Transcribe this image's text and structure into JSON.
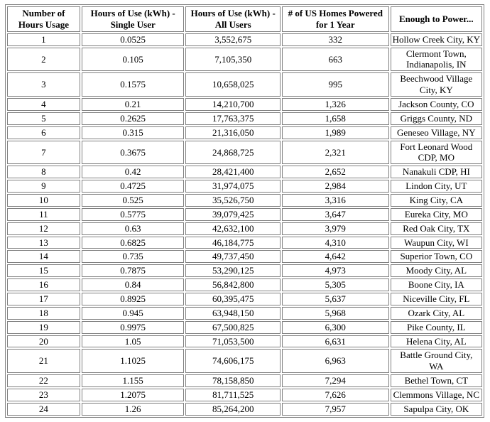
{
  "page": {
    "background_color": "#ffffff",
    "text_color": "#000000",
    "border_color": "#808080"
  },
  "table": {
    "columns": [
      "Number of Hours Usage",
      "Hours of Use (kWh) - Single User",
      "Hours of Use (kWh) - All Users",
      "# of US Homes Powered for 1 Year",
      "Enough to Power..."
    ],
    "rows": [
      [
        "1",
        "0.0525",
        "3,552,675",
        "332",
        "Hollow Creek City, KY"
      ],
      [
        "2",
        "0.105",
        "7,105,350",
        "663",
        "Clermont Town, Indianapolis, IN"
      ],
      [
        "3",
        "0.1575",
        "10,658,025",
        "995",
        "Beechwood Village City, KY"
      ],
      [
        "4",
        "0.21",
        "14,210,700",
        "1,326",
        "Jackson County, CO"
      ],
      [
        "5",
        "0.2625",
        "17,763,375",
        "1,658",
        "Griggs County, ND"
      ],
      [
        "6",
        "0.315",
        "21,316,050",
        "1,989",
        "Geneseo Village, NY"
      ],
      [
        "7",
        "0.3675",
        "24,868,725",
        "2,321",
        "Fort Leonard Wood CDP, MO"
      ],
      [
        "8",
        "0.42",
        "28,421,400",
        "2,652",
        "Nanakuli CDP, HI"
      ],
      [
        "9",
        "0.4725",
        "31,974,075",
        "2,984",
        "Lindon City, UT"
      ],
      [
        "10",
        "0.525",
        "35,526,750",
        "3,316",
        "King City, CA"
      ],
      [
        "11",
        "0.5775",
        "39,079,425",
        "3,647",
        "Eureka City, MO"
      ],
      [
        "12",
        "0.63",
        "42,632,100",
        "3,979",
        "Red Oak City, TX"
      ],
      [
        "13",
        "0.6825",
        "46,184,775",
        "4,310",
        "Waupun City, WI"
      ],
      [
        "14",
        "0.735",
        "49,737,450",
        "4,642",
        "Superior Town, CO"
      ],
      [
        "15",
        "0.7875",
        "53,290,125",
        "4,973",
        "Moody City, AL"
      ],
      [
        "16",
        "0.84",
        "56,842,800",
        "5,305",
        "Boone City, IA"
      ],
      [
        "17",
        "0.8925",
        "60,395,475",
        "5,637",
        "Niceville City, FL"
      ],
      [
        "18",
        "0.945",
        "63,948,150",
        "5,968",
        "Ozark City, AL"
      ],
      [
        "19",
        "0.9975",
        "67,500,825",
        "6,300",
        "Pike County, IL"
      ],
      [
        "20",
        "1.05",
        "71,053,500",
        "6,631",
        "Helena City, AL"
      ],
      [
        "21",
        "1.1025",
        "74,606,175",
        "6,963",
        "Battle Ground City, WA"
      ],
      [
        "22",
        "1.155",
        "78,158,850",
        "7,294",
        "Bethel Town, CT"
      ],
      [
        "23",
        "1.2075",
        "81,711,525",
        "7,626",
        "Clemmons Village, NC"
      ],
      [
        "24",
        "1.26",
        "85,264,200",
        "7,957",
        "Sapulpa City, OK"
      ]
    ]
  }
}
